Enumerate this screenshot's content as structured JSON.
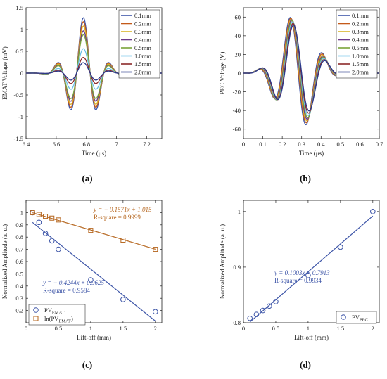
{
  "chart_data": [
    {
      "id": "a",
      "type": "line",
      "caption": "(a)",
      "xlabel": "Time (μs)",
      "ylabel": "EMAT Voltage (mV)",
      "xlim": [
        6.4,
        7.3
      ],
      "ylim": [
        -1.5,
        1.5
      ],
      "xticks": [
        "6.4",
        "6.6",
        "6.8",
        "7",
        "7.2"
      ],
      "yticks": [
        "-1.5",
        "-1",
        "-0.5",
        "0",
        "0.5",
        "1",
        "1.5"
      ],
      "legend_position": "top-right",
      "wave": {
        "center": 6.78,
        "sigma": 0.095,
        "period": 0.18,
        "baseline_end": 0.005
      },
      "series": [
        {
          "name": "0.1mm",
          "amplitude": 1.27,
          "color": "#3e56a8"
        },
        {
          "name": "0.2mm",
          "amplitude": 1.18,
          "color": "#c45a1a"
        },
        {
          "name": "0.3mm",
          "amplitude": 1.08,
          "color": "#d9b52a"
        },
        {
          "name": "0.4mm",
          "amplitude": 0.97,
          "color": "#6c3a8c"
        },
        {
          "name": "0.5mm",
          "amplitude": 0.88,
          "color": "#7aa43a"
        },
        {
          "name": "1.0mm",
          "amplitude": 0.56,
          "color": "#6cc0e8"
        },
        {
          "name": "1.5mm",
          "amplitude": 0.36,
          "color": "#8c2a2a"
        },
        {
          "name": "2.0mm",
          "amplitude": 0.24,
          "color": "#2b3a8c"
        }
      ]
    },
    {
      "id": "b",
      "type": "line",
      "caption": "(b)",
      "xlabel": "Time (μs)",
      "ylabel": "PEC Voltage (V)",
      "xlim": [
        0,
        0.7
      ],
      "ylim": [
        -70,
        70
      ],
      "xticks": [
        "0",
        "0.1",
        "0.2",
        "0.3",
        "0.4",
        "0.5",
        "0.6",
        "0.7"
      ],
      "yticks": [
        "-60",
        "-40",
        "-20",
        "0",
        "20",
        "40",
        "60"
      ],
      "legend_position": "top-right",
      "wave": {
        "start": 0.02,
        "end": 0.55,
        "period": 0.175,
        "center": 0.27,
        "sigma": 0.11
      },
      "series": [
        {
          "name": "0.1mm",
          "amplitude": 61,
          "color": "#3e56a8"
        },
        {
          "name": "0.2mm",
          "amplitude": 59.5,
          "color": "#c45a1a"
        },
        {
          "name": "0.3mm",
          "amplitude": 58,
          "color": "#d9b52a"
        },
        {
          "name": "0.4mm",
          "amplitude": 57,
          "color": "#6c3a8c"
        },
        {
          "name": "0.5mm",
          "amplitude": 56,
          "color": "#7aa43a"
        },
        {
          "name": "1.0mm",
          "amplitude": 54,
          "color": "#6cc0e8"
        },
        {
          "name": "1.5mm",
          "amplitude": 52,
          "color": "#8c2a2a"
        },
        {
          "name": "2.0mm",
          "amplitude": 50,
          "color": "#2b3a8c"
        }
      ]
    },
    {
      "id": "c",
      "type": "scatter",
      "caption": "(c)",
      "xlabel": "Lift-off (mm)",
      "ylabel": "Normalized Amplitude (a. u.)",
      "xlim": [
        0,
        2.1
      ],
      "ylim": [
        0.1,
        1.1
      ],
      "xticks": [
        "0",
        "0.5",
        "1",
        "1.5",
        "2"
      ],
      "yticks": [
        "0.2",
        "0.3",
        "0.4",
        "0.5",
        "0.6",
        "0.7",
        "0.8",
        "0.9",
        "1"
      ],
      "legend_position": "bottom-left",
      "x": [
        0.1,
        0.2,
        0.3,
        0.4,
        0.5,
        1.0,
        1.5,
        2.0
      ],
      "series": [
        {
          "name": "PV",
          "sub": "EMAT",
          "marker": "circle",
          "color": "#3e56a8",
          "values": [
            1.0,
            0.92,
            0.83,
            0.77,
            0.7,
            0.45,
            0.29,
            0.19
          ],
          "fit": {
            "slope": -0.4244,
            "intercept": 0.9625
          }
        },
        {
          "name": "ln(PV",
          "sub": "EMAT",
          "suffix": ")",
          "marker": "square",
          "color": "#b5651d",
          "values": [
            1.0,
            0.985,
            0.97,
            0.955,
            0.94,
            0.855,
            0.775,
            0.7
          ],
          "fit": {
            "slope": -0.1571,
            "intercept": 1.015
          }
        }
      ],
      "annotations": [
        {
          "line1": "y = − 0.1571x + 1.015",
          "line2": "R-square = 0.9999",
          "color": "#b5651d"
        },
        {
          "line1": "y = − 0.4244x + 0.9625",
          "line2": "R-square = 0.9584",
          "color": "#3e56a8"
        }
      ]
    },
    {
      "id": "d",
      "type": "scatter",
      "caption": "(d)",
      "xlabel": "Lift-off (mm)",
      "ylabel": "Normalized Amplitude (a. u.)",
      "xlim": [
        0,
        2.1
      ],
      "ylim": [
        0.8,
        1.02
      ],
      "xticks": [
        "0",
        "0.5",
        "1",
        "1.5",
        "2"
      ],
      "yticks": [
        "0.8",
        "0.9",
        "1"
      ],
      "legend_position": "bottom-right",
      "x": [
        0.1,
        0.2,
        0.3,
        0.4,
        0.5,
        1.0,
        1.5,
        2.0
      ],
      "series": [
        {
          "name": "PV",
          "sub": "PEC",
          "marker": "circle",
          "color": "#3e56a8",
          "values": [
            0.808,
            0.815,
            0.822,
            0.83,
            0.838,
            0.885,
            0.936,
            1.0
          ],
          "fit": {
            "slope": 0.1003,
            "intercept": 0.7913
          }
        }
      ],
      "annotations": [
        {
          "line1": "y = 0.1003x + 0.7913",
          "line2": "R-square = 0.9934",
          "color": "#3e56a8"
        }
      ]
    }
  ]
}
